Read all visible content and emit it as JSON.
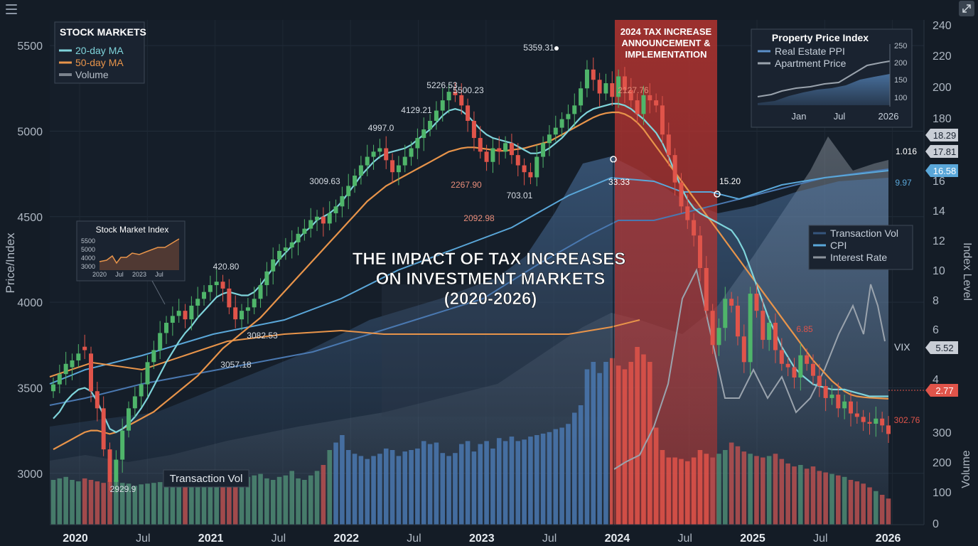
{
  "title": {
    "line1": "THE IMPACT OF TAX INCREASES",
    "line2": "ON INVESTMENT MARKETS",
    "line3": "(2020-2026)"
  },
  "colors": {
    "bg": "#141c26",
    "green": "#4fb56a",
    "red": "#e0544a",
    "cyan": "#7fd4db",
    "orange": "#e8944a",
    "blue": "#5b8fc9",
    "taxband": "#b3332f"
  },
  "icons": {
    "menu": "menu-icon",
    "expand": "expand-icon"
  },
  "tax_band_label": {
    "line1": "2024 TAX INCREASE",
    "line2": "ANNOUNCEMENT &",
    "line3": "IMPLEMENTATION"
  },
  "legend_main": {
    "title": "STOCK MARKETS",
    "items": [
      "20-day MA",
      "50-day MA",
      "Volume"
    ]
  },
  "legend_right": {
    "items": [
      "Transaction Vol",
      "CPI",
      "Interest Rate"
    ]
  },
  "inset_property": {
    "title": "Property Price Index",
    "items": [
      "Real Estate PPI",
      "Apartment Price"
    ],
    "yticks": [
      "250",
      "200",
      "150",
      "100"
    ],
    "xticks": [
      "Jan",
      "Jul",
      "2026"
    ]
  },
  "inset_stock": {
    "title": "Stock Market Index",
    "yticks": [
      "5500",
      "5000",
      "4000",
      "3000"
    ],
    "xticks": [
      "2020",
      "Jul",
      "2023",
      "Jul"
    ]
  },
  "transaction_vol_label": "Transaction Vol",
  "vix_label": "VIX",
  "chart_data": {
    "type": "candlestick",
    "xticks": [
      "2020",
      "Jul",
      "2021",
      "Jul",
      "2022",
      "Jul",
      "2023",
      "Jul",
      "2024",
      "Jul",
      "2025",
      "Jul",
      "2026"
    ],
    "ylabel_left": "Price/Index",
    "yticks_left": [
      "5500",
      "5000",
      "4500",
      "4000",
      "3500",
      "3000"
    ],
    "ylim_left": [
      2700,
      5650
    ],
    "ylabel_right": "Index Level",
    "yticks_right": [
      "240",
      "220",
      "200",
      "180",
      "16",
      "14",
      "12",
      "10",
      "8",
      "6",
      "4"
    ],
    "ylabel_right2": "Volume",
    "yticks_right2": [
      "300",
      "200",
      "100",
      "0"
    ],
    "tax_period": {
      "start": 2024.0,
      "end": 2024.72
    },
    "price_close": [
      3520,
      3580,
      3640,
      3660,
      3700,
      3720,
      3480,
      3380,
      3140,
      2950,
      3080,
      3250,
      3380,
      3450,
      3520,
      3650,
      3720,
      3820,
      3880,
      3920,
      3950,
      3900,
      3980,
      4020,
      4060,
      4100,
      4120,
      4080,
      3970,
      3900,
      3950,
      3970,
      4020,
      4100,
      4180,
      4250,
      4300,
      4320,
      4350,
      4400,
      4430,
      4480,
      4500,
      4460,
      4520,
      4560,
      4620,
      4680,
      4740,
      4800,
      4850,
      4880,
      4900,
      4830,
      4760,
      4800,
      4850,
      4900,
      4960,
      5010,
      5060,
      5120,
      5180,
      5230,
      5210,
      5150,
      5060,
      4960,
      4880,
      4820,
      4900,
      4880,
      4930,
      4860,
      4800,
      4760,
      4730,
      4850,
      4930,
      4980,
      5020,
      5070,
      5100,
      5150,
      5250,
      5360,
      5300,
      5220,
      5280,
      5200,
      5320,
      5240,
      5180,
      5100,
      5210,
      5180,
      5150,
      4980,
      4860,
      4700,
      4560,
      4480,
      4390,
      4200,
      3950,
      3750,
      3850,
      4020,
      3980,
      3800,
      3650,
      4050,
      3950,
      3780,
      3880,
      3720,
      3640,
      3620,
      3560,
      3690,
      3640,
      3570,
      3510,
      3440,
      3460,
      3380,
      3420,
      3350,
      3330,
      3300,
      3290,
      3320,
      3280,
      3230
    ],
    "price_open": [
      3480,
      3520,
      3580,
      3620,
      3660,
      3740,
      3700,
      3480,
      3380,
      3140,
      2950,
      3080,
      3250,
      3380,
      3450,
      3520,
      3650,
      3720,
      3820,
      3880,
      3920,
      3950,
      3900,
      3980,
      4020,
      4060,
      4100,
      4120,
      4080,
      3970,
      3900,
      3950,
      3970,
      4020,
      4100,
      4180,
      4250,
      4300,
      4320,
      4350,
      4400,
      4430,
      4480,
      4500,
      4460,
      4520,
      4560,
      4620,
      4680,
      4740,
      4800,
      4850,
      4880,
      4900,
      4830,
      4760,
      4800,
      4850,
      4900,
      4960,
      5010,
      5060,
      5120,
      5180,
      5230,
      5210,
      5150,
      5060,
      4960,
      4880,
      4820,
      4900,
      4880,
      4930,
      4860,
      4800,
      4760,
      4730,
      4850,
      4930,
      4980,
      5020,
      5070,
      5100,
      5150,
      5250,
      5360,
      5300,
      5220,
      5280,
      5200,
      5320,
      5240,
      5180,
      5100,
      5210,
      5180,
      5150,
      4980,
      4860,
      4700,
      4560,
      4480,
      4390,
      4200,
      3950,
      3750,
      3850,
      4020,
      3980,
      3800,
      3650,
      4050,
      3950,
      3780,
      3880,
      3720,
      3640,
      3620,
      3560,
      3690,
      3640,
      3570,
      3510,
      3440,
      3460,
      3380,
      3420,
      3350,
      3330,
      3300,
      3290,
      3320,
      3280
    ],
    "ma20": [
      3320,
      3360,
      3420,
      3460,
      3490,
      3500,
      3480,
      3420,
      3340,
      3260,
      3240,
      3260,
      3290,
      3330,
      3380,
      3440,
      3510,
      3580,
      3650,
      3710,
      3770,
      3820,
      3860,
      3910,
      3950,
      3990,
      4030,
      4050,
      4060,
      4050,
      4040,
      4040,
      4060,
      4100,
      4150,
      4200,
      4250,
      4290,
      4330,
      4370,
      4410,
      4440,
      4480,
      4500,
      4520,
      4550,
      4590,
      4640,
      4690,
      4740,
      4780,
      4820,
      4850,
      4870,
      4880,
      4890,
      4900,
      4920,
      4950,
      4980,
      5010,
      5050,
      5090,
      5120,
      5130,
      5120,
      5090,
      5050,
      5010,
      4980,
      4960,
      4950,
      4940,
      4930,
      4910,
      4890,
      4870,
      4870,
      4880,
      4900,
      4930,
      4960,
      5000,
      5040,
      5080,
      5110,
      5130,
      5140,
      5150,
      5160,
      5160,
      5150,
      5130,
      5100,
      5070,
      5030,
      4990,
      4930,
      4850,
      4760,
      4670,
      4600,
      4550,
      4520,
      4500,
      4480,
      4460,
      4440,
      4420,
      4370,
      4300,
      4200,
      4100,
      4000,
      3900,
      3820,
      3740,
      3680,
      3620,
      3580,
      3550,
      3520,
      3510,
      3500,
      3490,
      3490,
      3490,
      3480,
      3470,
      3460,
      3450,
      3450,
      3450,
      3450
    ],
    "ma50": [
      3140,
      3160,
      3180,
      3200,
      3220,
      3240,
      3250,
      3250,
      3240,
      3230,
      3240,
      3260,
      3280,
      3300,
      3320,
      3340,
      3360,
      3390,
      3420,
      3450,
      3480,
      3510,
      3540,
      3570,
      3610,
      3650,
      3690,
      3730,
      3760,
      3790,
      3820,
      3850,
      3880,
      3910,
      3950,
      3990,
      4030,
      4070,
      4110,
      4150,
      4190,
      4230,
      4270,
      4310,
      4350,
      4390,
      4430,
      4470,
      4510,
      4550,
      4590,
      4620,
      4650,
      4680,
      4700,
      4720,
      4740,
      4760,
      4780,
      4800,
      4820,
      4840,
      4860,
      4880,
      4890,
      4900,
      4905,
      4905,
      4900,
      4895,
      4890,
      4885,
      4885,
      4890,
      4895,
      4900,
      4910,
      4920,
      4930,
      4940,
      4960,
      4980,
      5000,
      5020,
      5040,
      5060,
      5080,
      5095,
      5105,
      5110,
      5110,
      5100,
      5080,
      5050,
      5010,
      4960,
      4910,
      4860,
      4810,
      4760,
      4710,
      4660,
      4610,
      4560,
      4510,
      4460,
      4410,
      4360,
      4310,
      4260,
      4210,
      4160,
      4110,
      4060,
      4010,
      3960,
      3910,
      3860,
      3810,
      3760,
      3710,
      3660,
      3620,
      3580,
      3540,
      3510,
      3480,
      3460,
      3450,
      3445,
      3442,
      3440,
      3438,
      3436
    ],
    "volume": [
      60,
      62,
      64,
      60,
      58,
      62,
      60,
      58,
      56,
      58,
      60,
      56,
      55,
      52,
      54,
      55,
      56,
      57,
      58,
      56,
      56,
      58,
      60,
      56,
      58,
      62,
      64,
      62,
      60,
      58,
      62,
      64,
      66,
      68,
      62,
      60,
      64,
      66,
      72,
      62,
      60,
      66,
      72,
      80,
      100,
      110,
      120,
      100,
      95,
      92,
      88,
      92,
      95,
      102,
      100,
      92,
      98,
      100,
      102,
      112,
      108,
      110,
      96,
      92,
      96,
      108,
      112,
      98,
      108,
      112,
      102,
      116,
      112,
      118,
      112,
      114,
      118,
      120,
      122,
      124,
      128,
      130,
      135,
      150,
      160,
      170,
      180,
      165,
      180,
      185,
      175,
      170,
      180,
      200,
      190,
      180,
      130,
      100,
      90,
      90,
      88,
      85,
      90,
      100,
      95,
      90,
      95,
      100,
      110,
      105,
      98,
      95,
      92,
      90,
      92,
      95,
      88,
      82,
      78,
      80,
      75,
      78,
      72,
      70,
      68,
      66,
      64,
      60,
      58,
      55,
      50,
      45,
      40,
      35
    ],
    "annotations": [
      "5359.31",
      "5226.53",
      "5500.23",
      "4129.21",
      "4997.0",
      "3009.63",
      "420.80",
      "3082.53",
      "3057.18",
      "2929.9",
      "2267.90",
      "2092.98",
      "703.01",
      "2127.76",
      "33.33",
      "15.20",
      "1.016",
      "9.97",
      "6.85",
      "302.76"
    ],
    "right_badges": [
      {
        "value": "18.29",
        "color": "#c9ced6"
      },
      {
        "value": "17.81",
        "color": "#c9ced6"
      },
      {
        "value": "16.58",
        "color": "#5aa7d9"
      },
      {
        "value": "5.52",
        "color": "#c9ced6"
      },
      {
        "value": "2.77",
        "color": "#e0544a"
      }
    ],
    "series": [
      {
        "name": "20-day MA"
      },
      {
        "name": "50-day MA"
      },
      {
        "name": "Volume"
      },
      {
        "name": "Transaction Vol"
      },
      {
        "name": "CPI"
      },
      {
        "name": "Interest Rate"
      },
      {
        "name": "Real Estate PPI"
      },
      {
        "name": "Apartment Price"
      },
      {
        "name": "VIX"
      }
    ]
  }
}
